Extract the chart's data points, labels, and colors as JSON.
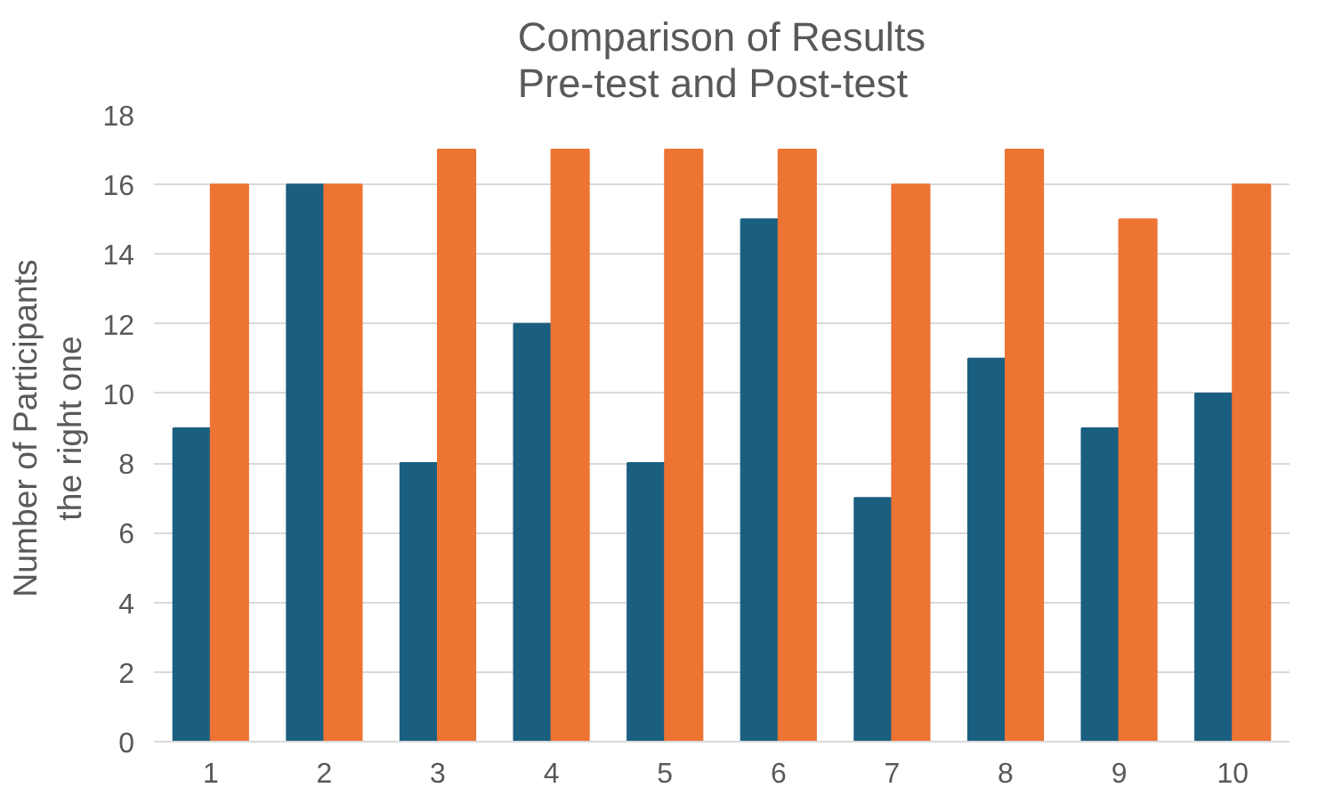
{
  "chart_data": {
    "type": "bar",
    "title": "Comparison of Results\nPre-test and Post-test",
    "ylabel": "Number of Participants\nthe right one",
    "categories": [
      "1",
      "2",
      "3",
      "4",
      "5",
      "6",
      "7",
      "8",
      "9",
      "10"
    ],
    "series": [
      {
        "color": "#1b5f80",
        "values": [
          9,
          16,
          8,
          12,
          8,
          15,
          7,
          11,
          9,
          10
        ]
      },
      {
        "color": "#ed7433",
        "values": [
          16,
          16,
          17,
          17,
          17,
          17,
          16,
          17,
          15,
          16
        ]
      }
    ],
    "ylim": [
      0,
      18
    ],
    "yticks": [
      0,
      2,
      4,
      6,
      8,
      10,
      12,
      14,
      16,
      18
    ],
    "grid": "y"
  }
}
